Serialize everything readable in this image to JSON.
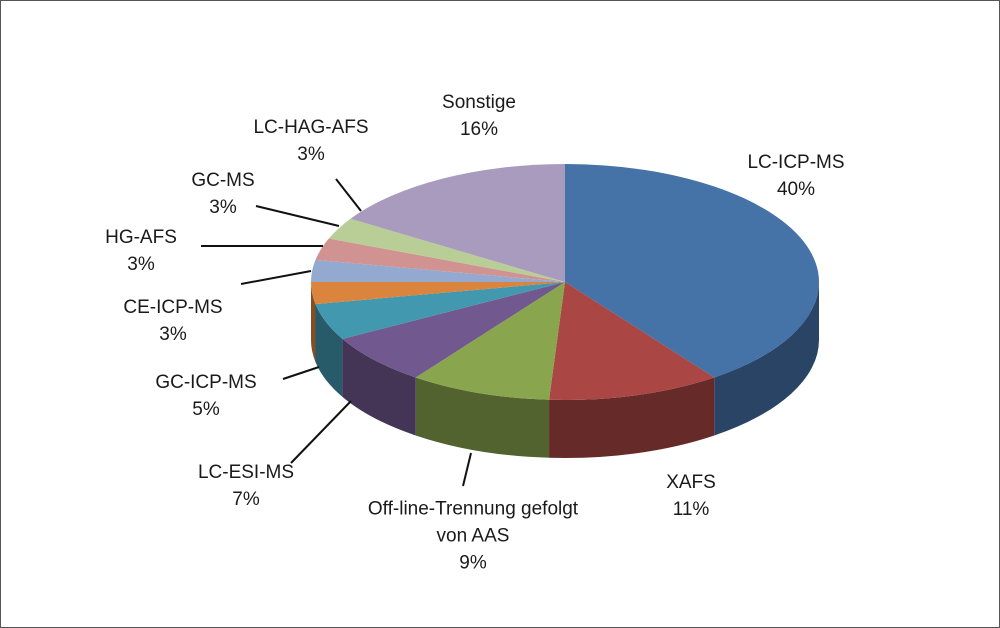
{
  "chart_data": {
    "type": "pie",
    "categories": [
      "LC-ICP-MS",
      "XAFS",
      "Off-line-Trennung gefolgt von AAS",
      "LC-ESI-MS",
      "GC-ICP-MS",
      "CE-ICP-MS",
      "HG-AFS",
      "GC-MS",
      "LC-HAG-AFS",
      "Sonstige"
    ],
    "values": [
      40,
      11,
      9,
      7,
      5,
      3,
      3,
      3,
      3,
      16
    ],
    "value_labels": [
      "40%",
      "11%",
      "9%",
      "7%",
      "5%",
      "3%",
      "3%",
      "3%",
      "3%",
      "16%"
    ],
    "colors": [
      "#4572a7",
      "#aa4643",
      "#89a54e",
      "#71588f",
      "#4198af",
      "#db843d",
      "#93a9cf",
      "#d19392",
      "#b9cd96",
      "#a99bbd"
    ]
  }
}
